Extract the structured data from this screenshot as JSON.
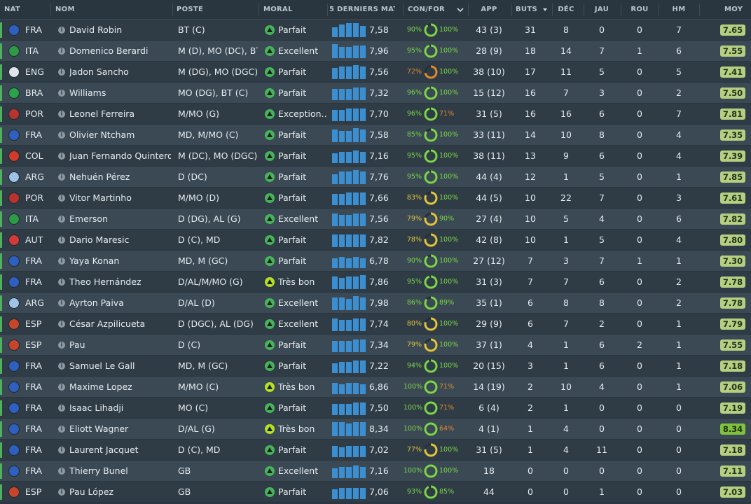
{
  "header": {
    "nat": "NAT",
    "nom": "NOM",
    "poste": "POSTE",
    "moral": "MORAL",
    "derniers": "5 DERNIERS MAT…",
    "confor": "CON/FOR",
    "app": "APP",
    "buts": "BUTS",
    "dec": "DÉC",
    "jau": "JAU",
    "rou": "ROU",
    "hm": "HM",
    "moy": "MOY"
  },
  "colors": {
    "morale_green": "#47b45a",
    "morale_lime": "#b8e021",
    "bar_blue": "#3b8fd1",
    "pct_green": "#7cd647",
    "pct_yellow": "#e3c43a",
    "pct_orange": "#e08a2e",
    "moy_default": "#b5cf82",
    "moy_best": "#7fc23d"
  },
  "players": [
    {
      "nat": "FRA",
      "flag": "#2f5fbf",
      "name": "David Robin",
      "pos": "BT (C)",
      "morale": "Parfait",
      "mc": "green",
      "form": "7,58",
      "bars": [
        14,
        18,
        20,
        20,
        16
      ],
      "con": "90%",
      "fit": "100%",
      "cv": 0.9,
      "fv": 1.0,
      "app": "43 (3)",
      "buts": "31",
      "dec": "8",
      "jau": "0",
      "rou": "0",
      "hm": "7",
      "moy": "7.65"
    },
    {
      "nat": "ITA",
      "flag": "#2e9a47",
      "name": "Domenico Berardi",
      "pos": "M (D), MO (DC), BT...",
      "morale": "Excellent",
      "mc": "green",
      "form": "7,96",
      "bars": [
        20,
        16,
        16,
        18,
        18
      ],
      "con": "95%",
      "fit": "100%",
      "cv": 0.95,
      "fv": 1.0,
      "app": "28 (9)",
      "buts": "18",
      "dec": "14",
      "jau": "7",
      "rou": "1",
      "hm": "6",
      "moy": "7.55"
    },
    {
      "nat": "ENG",
      "flag": "#dfe4ea",
      "name": "Jadon Sancho",
      "pos": "M (DG), MO (DGC)",
      "morale": "Parfait",
      "mc": "green",
      "form": "7,56",
      "bars": [
        16,
        18,
        18,
        20,
        18
      ],
      "con": "72%",
      "fit": "100%",
      "cv": 0.72,
      "fv": 1.0,
      "app": "38 (10)",
      "buts": "17",
      "dec": "11",
      "jau": "5",
      "rou": "0",
      "hm": "5",
      "moy": "7.41"
    },
    {
      "nat": "BRA",
      "flag": "#2aa24a",
      "name": "Williams",
      "pos": "MO (DG), BT (C)",
      "morale": "Parfait",
      "mc": "green",
      "form": "7,32",
      "bars": [
        16,
        16,
        16,
        18,
        18
      ],
      "con": "96%",
      "fit": "100%",
      "cv": 0.96,
      "fv": 1.0,
      "app": "15 (12)",
      "buts": "16",
      "dec": "7",
      "jau": "3",
      "rou": "0",
      "hm": "2",
      "moy": "7.50"
    },
    {
      "nat": "POR",
      "flag": "#b8342d",
      "name": "Leonel Ferreira",
      "pos": "M/MO (G)",
      "morale": "Exception…",
      "mc": "green",
      "form": "7,70",
      "bars": [
        16,
        16,
        18,
        18,
        18
      ],
      "con": "96%",
      "fit": "71%",
      "cv": 0.96,
      "fv": 0.71,
      "app": "31 (5)",
      "buts": "16",
      "dec": "16",
      "jau": "6",
      "rou": "0",
      "hm": "7",
      "moy": "7.81"
    },
    {
      "nat": "FRA",
      "flag": "#2f5fbf",
      "name": "Olivier Ntcham",
      "pos": "MD, M/MO (C)",
      "morale": "Parfait",
      "mc": "green",
      "form": "7,58",
      "bars": [
        18,
        16,
        16,
        20,
        18
      ],
      "con": "85%",
      "fit": "100%",
      "cv": 0.85,
      "fv": 1.0,
      "app": "33 (11)",
      "buts": "14",
      "dec": "10",
      "jau": "8",
      "rou": "0",
      "hm": "4",
      "moy": "7.35"
    },
    {
      "nat": "COL",
      "flag": "#d33a2c",
      "name": "Juan Fernando Quintero",
      "pos": "M (DC), MO (DGC)",
      "morale": "Parfait",
      "mc": "green",
      "form": "7,16",
      "bars": [
        14,
        16,
        16,
        18,
        16
      ],
      "con": "95%",
      "fit": "100%",
      "cv": 0.95,
      "fv": 1.0,
      "app": "38 (11)",
      "buts": "13",
      "dec": "9",
      "jau": "6",
      "rou": "0",
      "hm": "4",
      "moy": "7.39"
    },
    {
      "nat": "ARG",
      "flag": "#9fc3e6",
      "name": "Nehuén Pérez",
      "pos": "D (DC)",
      "morale": "Parfait",
      "mc": "green",
      "form": "7,76",
      "bars": [
        14,
        18,
        18,
        20,
        18
      ],
      "con": "95%",
      "fit": "100%",
      "cv": 0.95,
      "fv": 1.0,
      "app": "44 (4)",
      "buts": "12",
      "dec": "1",
      "jau": "5",
      "rou": "0",
      "hm": "1",
      "moy": "7.85"
    },
    {
      "nat": "POR",
      "flag": "#b8342d",
      "name": "Vitor Martinho",
      "pos": "M/MO (D)",
      "morale": "Parfait",
      "mc": "green",
      "form": "7,66",
      "bars": [
        16,
        16,
        18,
        18,
        18
      ],
      "con": "83%",
      "fit": "100%",
      "cv": 0.83,
      "fv": 1.0,
      "app": "44 (5)",
      "buts": "10",
      "dec": "22",
      "jau": "7",
      "rou": "0",
      "hm": "3",
      "moy": "7.61"
    },
    {
      "nat": "ITA",
      "flag": "#2e9a47",
      "name": "Emerson",
      "pos": "D (DG), AL (G)",
      "morale": "Excellent",
      "mc": "green",
      "form": "7,56",
      "bars": [
        18,
        16,
        16,
        18,
        18
      ],
      "con": "79%",
      "fit": "90%",
      "cv": 0.79,
      "fv": 0.9,
      "app": "27 (4)",
      "buts": "10",
      "dec": "5",
      "jau": "4",
      "rou": "0",
      "hm": "6",
      "moy": "7.82"
    },
    {
      "nat": "AUT",
      "flag": "#d23a3a",
      "name": "Dario Maresic",
      "pos": "D (C), MD",
      "morale": "Parfait",
      "mc": "green",
      "form": "7,82",
      "bars": [
        18,
        18,
        18,
        18,
        18
      ],
      "con": "78%",
      "fit": "100%",
      "cv": 0.78,
      "fv": 1.0,
      "app": "42 (8)",
      "buts": "10",
      "dec": "1",
      "jau": "5",
      "rou": "0",
      "hm": "4",
      "moy": "7.80"
    },
    {
      "nat": "FRA",
      "flag": "#2f5fbf",
      "name": "Yaya Konan",
      "pos": "MD, M (GC)",
      "morale": "Parfait",
      "mc": "green",
      "form": "6,78",
      "bars": [
        14,
        16,
        14,
        16,
        14
      ],
      "con": "90%",
      "fit": "100%",
      "cv": 0.9,
      "fv": 1.0,
      "app": "27 (12)",
      "buts": "7",
      "dec": "3",
      "jau": "7",
      "rou": "1",
      "hm": "1",
      "moy": "7.30"
    },
    {
      "nat": "FRA",
      "flag": "#2f5fbf",
      "name": "Theo Hernández",
      "pos": "D/AL/M/MO (G)",
      "morale": "Très bon",
      "mc": "lime",
      "form": "7,86",
      "bars": [
        18,
        16,
        18,
        18,
        20
      ],
      "con": "95%",
      "fit": "100%",
      "cv": 0.95,
      "fv": 1.0,
      "app": "31 (3)",
      "buts": "7",
      "dec": "7",
      "jau": "6",
      "rou": "0",
      "hm": "2",
      "moy": "7.78"
    },
    {
      "nat": "ARG",
      "flag": "#9fc3e6",
      "name": "Ayrton Paiva",
      "pos": "D/AL (D)",
      "morale": "Excellent",
      "mc": "green",
      "form": "7,98",
      "bars": [
        18,
        18,
        16,
        20,
        18
      ],
      "con": "86%",
      "fit": "89%",
      "cv": 0.86,
      "fv": 0.89,
      "app": "35 (1)",
      "buts": "6",
      "dec": "8",
      "jau": "8",
      "rou": "0",
      "hm": "2",
      "moy": "7.78"
    },
    {
      "nat": "ESP",
      "flag": "#c8452c",
      "name": "César Azpilicueta",
      "pos": "D (DGC), AL (DG)",
      "morale": "Excellent",
      "mc": "green",
      "form": "7,74",
      "bars": [
        18,
        16,
        16,
        18,
        18
      ],
      "con": "80%",
      "fit": "100%",
      "cv": 0.8,
      "fv": 1.0,
      "app": "29 (9)",
      "buts": "6",
      "dec": "7",
      "jau": "2",
      "rou": "0",
      "hm": "1",
      "moy": "7.79"
    },
    {
      "nat": "ESP",
      "flag": "#c8452c",
      "name": "Pau",
      "pos": "D (C)",
      "morale": "Parfait",
      "mc": "green",
      "form": "7,34",
      "bars": [
        16,
        16,
        16,
        18,
        18
      ],
      "con": "79%",
      "fit": "100%",
      "cv": 0.79,
      "fv": 1.0,
      "app": "37 (1)",
      "buts": "4",
      "dec": "1",
      "jau": "6",
      "rou": "2",
      "hm": "1",
      "moy": "7.55"
    },
    {
      "nat": "FRA",
      "flag": "#2f5fbf",
      "name": "Samuel Le Gall",
      "pos": "MD, M (GC)",
      "morale": "Parfait",
      "mc": "green",
      "form": "7,22",
      "bars": [
        14,
        16,
        16,
        18,
        18
      ],
      "con": "94%",
      "fit": "100%",
      "cv": 0.94,
      "fv": 1.0,
      "app": "20 (15)",
      "buts": "3",
      "dec": "1",
      "jau": "6",
      "rou": "0",
      "hm": "1",
      "moy": "7.18"
    },
    {
      "nat": "FRA",
      "flag": "#2f5fbf",
      "name": "Maxime Lopez",
      "pos": "M/MO (C)",
      "morale": "Très bon",
      "mc": "lime",
      "form": "6,86",
      "bars": [
        16,
        14,
        16,
        16,
        14
      ],
      "con": "100%",
      "fit": "71%",
      "cv": 1.0,
      "fv": 0.71,
      "app": "14 (19)",
      "buts": "2",
      "dec": "10",
      "jau": "4",
      "rou": "0",
      "hm": "1",
      "moy": "7.06"
    },
    {
      "nat": "FRA",
      "flag": "#2f5fbf",
      "name": "Isaac Lihadji",
      "pos": "MO (C)",
      "morale": "Parfait",
      "mc": "green",
      "form": "7,50",
      "bars": [
        16,
        16,
        16,
        18,
        18
      ],
      "con": "100%",
      "fit": "71%",
      "cv": 1.0,
      "fv": 0.71,
      "app": "6 (4)",
      "buts": "2",
      "dec": "1",
      "jau": "0",
      "rou": "0",
      "hm": "0",
      "moy": "7.19"
    },
    {
      "nat": "FRA",
      "flag": "#2f5fbf",
      "name": "Eliott Wagner",
      "pos": "D/AL (G)",
      "morale": "Très bon",
      "mc": "lime",
      "form": "8,34",
      "bars": [
        20,
        20,
        18,
        20,
        20
      ],
      "con": "100%",
      "fit": "64%",
      "cv": 1.0,
      "fv": 0.64,
      "app": "4 (1)",
      "buts": "1",
      "dec": "4",
      "jau": "0",
      "rou": "0",
      "hm": "0",
      "moy": "8.34",
      "best": true
    },
    {
      "nat": "FRA",
      "flag": "#2f5fbf",
      "name": "Laurent Jacquet",
      "pos": "D (C), MD",
      "morale": "Parfait",
      "mc": "green",
      "form": "7,02",
      "bars": [
        16,
        14,
        16,
        16,
        16
      ],
      "con": "77%",
      "fit": "100%",
      "cv": 0.77,
      "fv": 1.0,
      "app": "31 (5)",
      "buts": "1",
      "dec": "4",
      "jau": "11",
      "rou": "0",
      "hm": "0",
      "moy": "7.18"
    },
    {
      "nat": "FRA",
      "flag": "#2f5fbf",
      "name": "Thierry Bunel",
      "pos": "GB",
      "morale": "Excellent",
      "mc": "green",
      "form": "7,16",
      "bars": [
        14,
        16,
        16,
        18,
        16
      ],
      "con": "100%",
      "fit": "100%",
      "cv": 1.0,
      "fv": 1.0,
      "app": "18",
      "buts": "0",
      "dec": "0",
      "jau": "0",
      "rou": "0",
      "hm": "0",
      "moy": "7.11"
    },
    {
      "nat": "ESP",
      "flag": "#c8452c",
      "name": "Pau López",
      "pos": "GB",
      "morale": "Parfait",
      "mc": "green",
      "form": "7,06",
      "bars": [
        14,
        16,
        16,
        16,
        16
      ],
      "con": "93%",
      "fit": "85%",
      "cv": 0.93,
      "fv": 0.85,
      "app": "44",
      "buts": "0",
      "dec": "0",
      "jau": "1",
      "rou": "0",
      "hm": "0",
      "moy": "7.03"
    }
  ]
}
